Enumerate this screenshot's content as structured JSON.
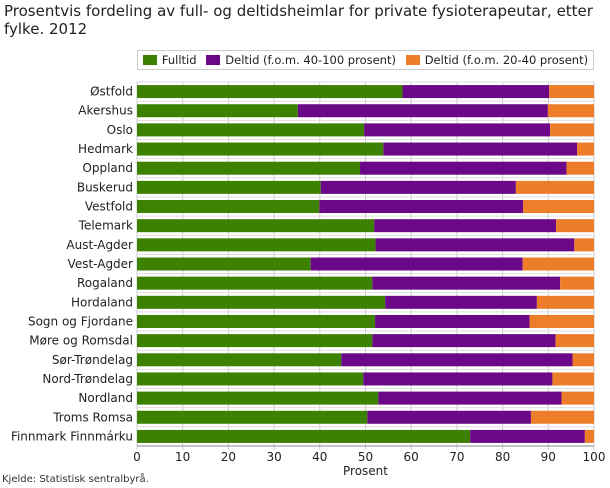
{
  "chart_data": {
    "type": "bar",
    "orientation": "horizontal",
    "stacked": true,
    "title": "Prosentvis fordeling av full- og deltidsheimlar for private fysioterapeutar, etter fylke. 2012",
    "xlabel": "Prosent",
    "ylabel": "",
    "xlim": [
      0,
      100
    ],
    "xticks": [
      "0",
      "10",
      "20",
      "30",
      "40",
      "50",
      "60",
      "70",
      "80",
      "90",
      "100"
    ],
    "grid": true,
    "legend_position": "top",
    "categories": [
      "Østfold",
      "Akershus",
      "Oslo",
      "Hedmark",
      "Oppland",
      "Buskerud",
      "Vestfold",
      "Telemark",
      "Aust-Agder",
      "Vest-Agder",
      "Rogaland",
      "Hordaland",
      "Sogn og Fjordane",
      "Møre og Romsdal",
      "Sør-Trøndelag",
      "Nord-Trøndelag",
      "Nordland",
      "Troms Romsa",
      "Finnmark Finnmárku"
    ],
    "series": [
      {
        "name": "Fulltid",
        "color": "#3d8100",
        "values": [
          58.1,
          35.2,
          49.7,
          53.9,
          48.8,
          40.2,
          39.9,
          51.9,
          52.2,
          38.0,
          51.5,
          54.3,
          52.1,
          51.5,
          44.7,
          49.5,
          52.8,
          50.4,
          72.9
        ]
      },
      {
        "name": "Deltid (f.o.m. 40-100 prosent)",
        "color": "#6a0888",
        "values": [
          32.1,
          54.7,
          40.7,
          42.4,
          45.2,
          42.7,
          44.6,
          39.8,
          43.5,
          46.4,
          41.1,
          33.2,
          33.8,
          40.1,
          50.6,
          41.4,
          40.1,
          35.8,
          25.1
        ]
      },
      {
        "name": "Deltid (f.o.m. 20-40 prosent)",
        "color": "#ed7d28",
        "values": [
          9.8,
          10.1,
          9.6,
          3.7,
          6.0,
          17.1,
          15.5,
          8.3,
          4.3,
          15.6,
          7.4,
          12.5,
          14.1,
          8.4,
          4.7,
          9.1,
          7.1,
          13.8,
          2.0
        ]
      }
    ]
  },
  "source": "Kjelde: Statistisk sentralbyrå."
}
